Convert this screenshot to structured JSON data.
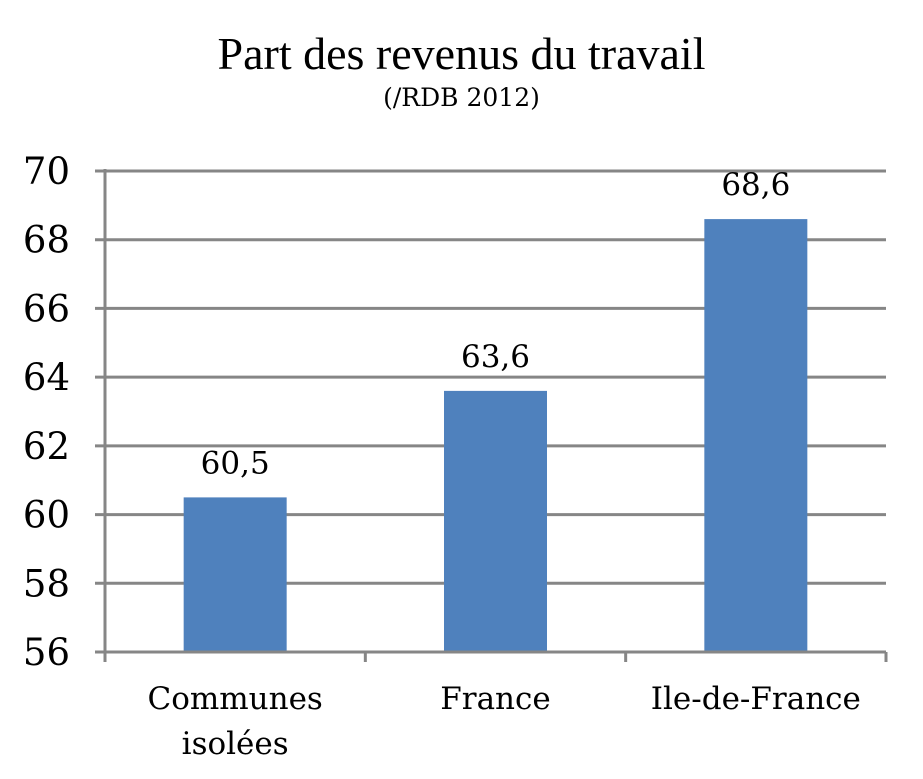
{
  "chart_data": {
    "type": "bar",
    "title": "Part des revenus du travail",
    "subtitle": "(/RDB 2012)",
    "xlabel": "",
    "ylabel": "",
    "categories": [
      [
        "Communes",
        "isolées"
      ],
      [
        "France"
      ],
      [
        "Ile-de-France"
      ]
    ],
    "values": [
      60.5,
      63.6,
      68.6
    ],
    "data_labels": [
      "60,5",
      "63,6",
      "68,6"
    ],
    "ylim": [
      56,
      70
    ],
    "yticks": [
      56,
      58,
      60,
      62,
      64,
      66,
      68,
      70
    ],
    "ytick_labels": [
      "56",
      "58",
      "60",
      "62",
      "64",
      "66",
      "68",
      "70"
    ],
    "grid": true,
    "legend": "none",
    "colors": {
      "bar": "#4f81bd",
      "grid": "#868686",
      "axis": "#868686",
      "text": "#000000"
    }
  }
}
